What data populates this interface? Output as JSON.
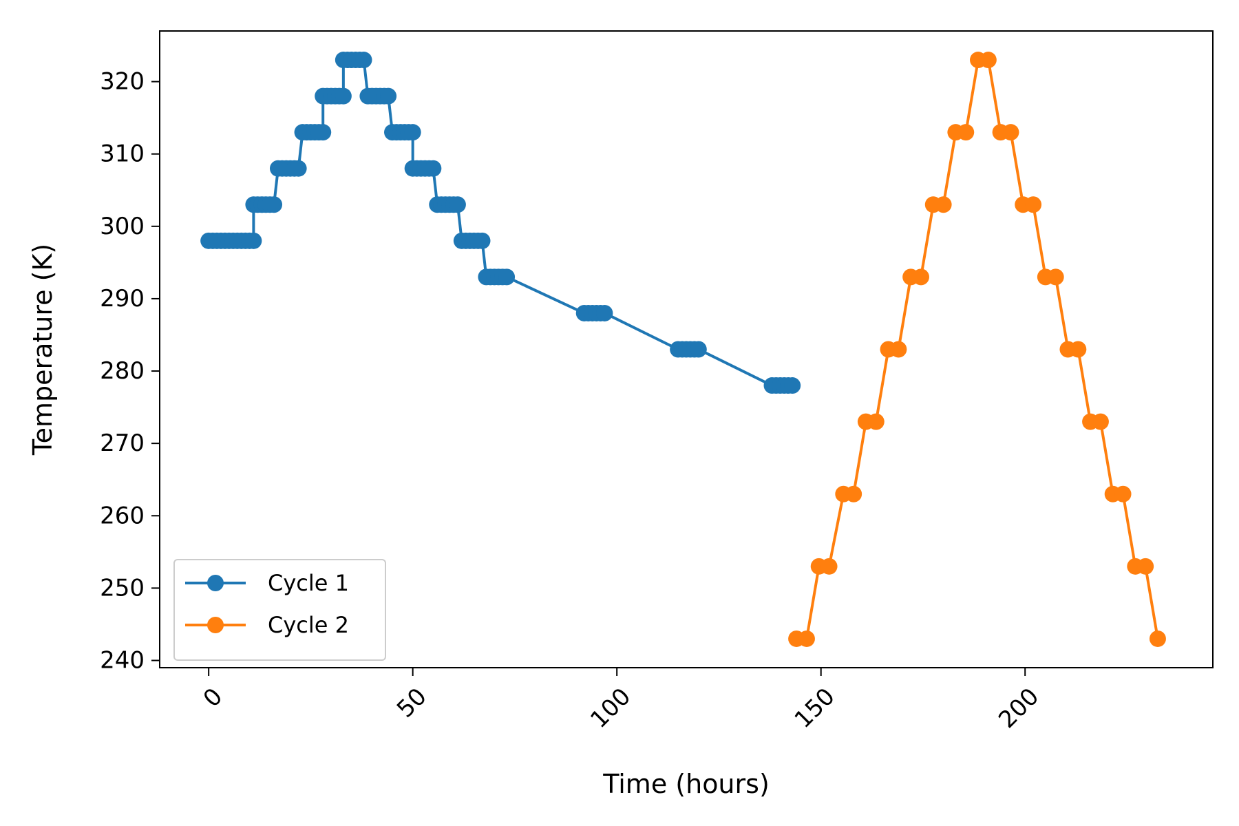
{
  "chart_data": {
    "type": "line",
    "title": "",
    "xlabel": "Time (hours)",
    "ylabel": "Temperature (K)",
    "xlim": [
      -12,
      246
    ],
    "ylim": [
      239,
      327
    ],
    "xticks": [
      0,
      50,
      100,
      150,
      200
    ],
    "yticks": [
      240,
      250,
      260,
      270,
      280,
      290,
      300,
      310,
      320
    ],
    "grid": false,
    "legend_position": "lower-left",
    "series": [
      {
        "name": "Cycle 1",
        "color": "#1f77b4",
        "x": [
          0,
          1,
          2,
          3,
          4,
          5,
          6,
          7,
          8,
          9,
          10,
          11,
          11,
          12,
          13,
          14,
          15,
          16,
          17,
          18,
          19,
          20,
          21,
          22,
          23,
          24,
          25,
          26,
          27,
          28,
          28,
          29,
          30,
          31,
          32,
          33,
          33,
          34,
          35,
          36,
          37,
          38,
          39,
          40,
          41,
          42,
          43,
          44,
          45,
          46,
          47,
          48,
          49,
          50,
          50,
          51,
          52,
          53,
          54,
          55,
          56,
          57,
          58,
          59,
          60,
          61,
          62,
          63,
          64,
          65,
          66,
          67,
          68,
          69,
          70,
          71,
          72,
          73,
          92,
          93,
          94,
          95,
          96,
          97,
          115,
          116,
          117,
          118,
          119,
          120,
          138,
          139,
          140,
          141,
          142,
          143
        ],
        "y": [
          298,
          298,
          298,
          298,
          298,
          298,
          298,
          298,
          298,
          298,
          298,
          298,
          303,
          303,
          303,
          303,
          303,
          303,
          308,
          308,
          308,
          308,
          308,
          308,
          313,
          313,
          313,
          313,
          313,
          313,
          318,
          318,
          318,
          318,
          318,
          318,
          323,
          323,
          323,
          323,
          323,
          323,
          318,
          318,
          318,
          318,
          318,
          318,
          313,
          313,
          313,
          313,
          313,
          313,
          308,
          308,
          308,
          308,
          308,
          308,
          303,
          303,
          303,
          303,
          303,
          303,
          298,
          298,
          298,
          298,
          298,
          298,
          293,
          293,
          293,
          293,
          293,
          293,
          288,
          288,
          288,
          288,
          288,
          288,
          283,
          283,
          283,
          283,
          283,
          283,
          278,
          278,
          278,
          278,
          278,
          278
        ]
      },
      {
        "name": "Cycle 2",
        "color": "#ff7f0e",
        "x": [
          144,
          146.5,
          149.5,
          152,
          155.5,
          158,
          161,
          163.5,
          166.5,
          169,
          172,
          174.5,
          177.5,
          180,
          183,
          185.5,
          188.5,
          191,
          194,
          196.5,
          199.5,
          202,
          205,
          207.5,
          210.5,
          213,
          216,
          218.5,
          221.5,
          224,
          227,
          229.5,
          232.5
        ],
        "y": [
          243,
          243,
          253,
          253,
          263,
          263,
          273,
          273,
          283,
          283,
          293,
          293,
          303,
          303,
          313,
          313,
          323,
          323,
          313,
          313,
          303,
          303,
          293,
          293,
          283,
          283,
          273,
          273,
          263,
          263,
          253,
          253,
          243
        ]
      }
    ]
  }
}
